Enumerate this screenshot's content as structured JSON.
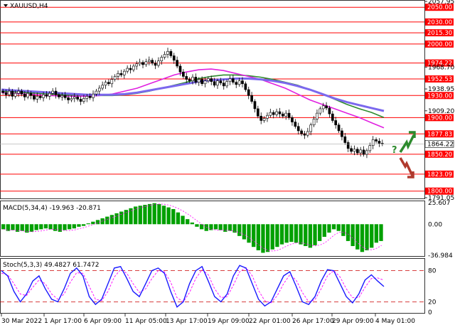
{
  "chart_data": {
    "type": "candlestick",
    "symbol": "XAUUSD,H4",
    "x_tick_labels": [
      "30 Mar 2022",
      "1 Apr 17:00",
      "6 Apr 09:00",
      "11 Apr 05:00",
      "13 Apr 17:00",
      "19 Apr 09:00",
      "22 Apr 01:00",
      "26 Apr 17:00",
      "29 Apr 09:00",
      "4 May 01:00"
    ],
    "price_axis": {
      "range": [
        1791.05,
        2057.95
      ],
      "tick_labels": [
        "2057.95",
        "1968.70",
        "1938.95",
        "1909.20",
        "1791.05"
      ],
      "current_price": "1864.22"
    },
    "support_resistance_levels": [
      "2050.00",
      "2030.00",
      "2015.30",
      "2000.00",
      "1974.22",
      "1952.53",
      "1930.00",
      "1900.00",
      "1877.83",
      "1850.20",
      "1823.09",
      "1800.00"
    ],
    "price_closes": [
      1934,
      1931,
      1936,
      1929,
      1933,
      1936,
      1932,
      1928,
      1933,
      1930,
      1925,
      1929,
      1927,
      1931,
      1929,
      1933,
      1936,
      1931,
      1928,
      1930,
      1927,
      1924,
      1926,
      1928,
      1925,
      1922,
      1926,
      1929,
      1927,
      1932,
      1936,
      1940,
      1944,
      1948,
      1946,
      1952,
      1956,
      1960,
      1958,
      1963,
      1967,
      1965,
      1970,
      1973,
      1975,
      1972,
      1976,
      1978,
      1974,
      1971,
      1977,
      1982,
      1986,
      1990,
      1984,
      1978,
      1970,
      1962,
      1956,
      1952,
      1950,
      1955,
      1948,
      1952,
      1946,
      1950,
      1953,
      1949,
      1944,
      1950,
      1947,
      1943,
      1949,
      1953,
      1948,
      1945,
      1950,
      1946,
      1938,
      1930,
      1922,
      1912,
      1902,
      1896,
      1899,
      1903,
      1907,
      1904,
      1908,
      1905,
      1902,
      1906,
      1900,
      1894,
      1888,
      1882,
      1878,
      1876,
      1881,
      1890,
      1898,
      1906,
      1912,
      1916,
      1913,
      1905,
      1896,
      1890,
      1882,
      1874,
      1866,
      1858,
      1854,
      1857,
      1852,
      1856,
      1850,
      1855,
      1862,
      1870,
      1868,
      1865,
      1864.22
    ],
    "ema_series": [
      {
        "color": "#2e8b2e",
        "values": [
          1936,
          1935,
          1934,
          1933,
          1932,
          1931,
          1930,
          1930,
          1930,
          1930,
          1931,
          1933,
          1936,
          1940,
          1944,
          1948,
          1953,
          1956,
          1958,
          1958,
          1957,
          1955,
          1952,
          1948,
          1944,
          1938,
          1932,
          1925,
          1918,
          1912,
          1907,
          1900
        ]
      },
      {
        "color": "#e020e0",
        "values": [
          1934,
          1933,
          1932,
          1931,
          1930,
          1929,
          1929,
          1929,
          1930,
          1932,
          1936,
          1940,
          1946,
          1952,
          1958,
          1962,
          1965,
          1966,
          1964,
          1960,
          1956,
          1952,
          1946,
          1940,
          1932,
          1924,
          1918,
          1912,
          1906,
          1900,
          1893,
          1886
        ]
      },
      {
        "color": "#7b68ee",
        "values": [
          1938,
          1937,
          1936,
          1935,
          1934,
          1933,
          1932,
          1931,
          1931,
          1931,
          1932,
          1934,
          1937,
          1940,
          1943,
          1946,
          1949,
          1951,
          1952,
          1953,
          1953,
          1952,
          1950,
          1947,
          1943,
          1938,
          1932,
          1926,
          1921,
          1917,
          1913,
          1909
        ]
      }
    ],
    "macd": {
      "label": "MACD(5,34,4) -19.963 -20.871",
      "range": [
        -36.984,
        25.607
      ],
      "tick_labels": [
        "25.607",
        "0.00",
        "-36.984"
      ],
      "histogram": [
        -6,
        -8,
        -7,
        -9,
        -8,
        -10,
        -9,
        -7,
        -6,
        -5,
        -6,
        -8,
        -9,
        -7,
        -6,
        -5,
        -3,
        -2,
        1,
        3,
        5,
        7,
        9,
        11,
        13,
        15,
        17,
        19,
        21,
        22,
        23,
        24,
        25,
        24,
        22,
        20,
        18,
        14,
        10,
        6,
        2,
        -3,
        -6,
        -8,
        -7,
        -6,
        -7,
        -9,
        -8,
        -10,
        -14,
        -18,
        -22,
        -27,
        -31,
        -34,
        -33,
        -30,
        -27,
        -24,
        -22,
        -21,
        -22,
        -24,
        -26,
        -28,
        -25,
        -20,
        -15,
        -10,
        -6,
        -8,
        -14,
        -20,
        -26,
        -30,
        -33,
        -31,
        -28,
        -22,
        -20
      ],
      "signal_label": "-20.871"
    },
    "stochastic": {
      "label": "Stoch(5,3,3) 49.4827 61.7472",
      "range": [
        0,
        100
      ],
      "tick_labels": [
        "80",
        "20",
        "0"
      ],
      "main": [
        80,
        70,
        40,
        20,
        35,
        60,
        70,
        45,
        25,
        20,
        45,
        75,
        85,
        70,
        30,
        15,
        25,
        55,
        85,
        88,
        65,
        40,
        30,
        55,
        80,
        85,
        75,
        40,
        10,
        20,
        55,
        80,
        88,
        60,
        30,
        20,
        35,
        70,
        90,
        85,
        55,
        25,
        12,
        20,
        45,
        70,
        78,
        50,
        20,
        15,
        30,
        60,
        82,
        80,
        55,
        30,
        18,
        35,
        62,
        72,
        60,
        49.48
      ],
      "signal": [
        75,
        72,
        55,
        35,
        32,
        48,
        62,
        55,
        35,
        25,
        35,
        58,
        76,
        75,
        50,
        25,
        22,
        40,
        68,
        82,
        75,
        55,
        38,
        45,
        65,
        80,
        78,
        58,
        28,
        20,
        38,
        65,
        82,
        72,
        45,
        28,
        30,
        52,
        78,
        86,
        70,
        42,
        22,
        18,
        32,
        55,
        72,
        62,
        38,
        20,
        24,
        45,
        70,
        80,
        68,
        45,
        28,
        28,
        48,
        65,
        66,
        61.75
      ]
    }
  },
  "colors": {
    "level_line": "#ff0000",
    "bull": "#0b8a0b",
    "bear": "#cc3300",
    "macd_bar": "#00a000",
    "stoch_main": "#1a1aff",
    "stoch_signal": "#ff00ff"
  }
}
